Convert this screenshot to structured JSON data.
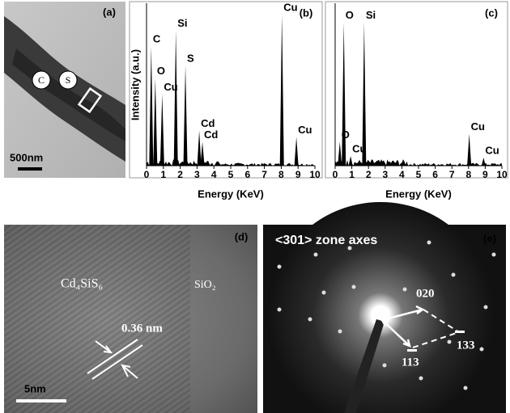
{
  "panels": {
    "a": {
      "tag": "(a)",
      "marker_1": "C",
      "marker_2": "S",
      "scale_bar": "500nm"
    },
    "d": {
      "tag": "(d)",
      "region_1": "Cd₄SiS₆",
      "region_2": "SiO₂",
      "spacing": "0.36 nm",
      "scale_bar": "5nm"
    },
    "e": {
      "tag": "(e)",
      "title": "<301> zone axes",
      "spot_1": "020",
      "spot_2": "133",
      "spot_3": "113"
    }
  },
  "chart_data": [
    {
      "type": "spectrum",
      "tag": "(b)",
      "xlabel": "Energy (KeV)",
      "ylabel": "Intensity (a.u.)",
      "xlim": [
        0,
        10
      ],
      "xticks": [
        0,
        1,
        2,
        3,
        4,
        5,
        6,
        7,
        8,
        9,
        10
      ],
      "ylim": [
        0,
        100
      ],
      "color": "#000000",
      "peaks": [
        {
          "label": "C",
          "energy": 0.28,
          "height": 75
        },
        {
          "label": "O",
          "energy": 0.52,
          "height": 55
        },
        {
          "label": "Cu",
          "energy": 0.93,
          "height": 45
        },
        {
          "label": "Si",
          "energy": 1.74,
          "height": 85
        },
        {
          "label": "S",
          "energy": 2.31,
          "height": 63
        },
        {
          "label": "Cd",
          "energy": 3.13,
          "height": 22
        },
        {
          "label": "Cd",
          "energy": 3.32,
          "height": 15
        },
        {
          "label": "Cu",
          "energy": 8.04,
          "height": 95
        },
        {
          "label": "Cu",
          "energy": 8.9,
          "height": 18
        }
      ]
    },
    {
      "type": "spectrum",
      "tag": "(c)",
      "xlabel": "Energy (KeV)",
      "xlim": [
        0,
        10
      ],
      "xticks": [
        0,
        1,
        2,
        3,
        4,
        5,
        6,
        7,
        8,
        9,
        10
      ],
      "ylim": [
        0,
        100
      ],
      "color": "#000000",
      "peaks": [
        {
          "label": "O",
          "energy": 0.28,
          "height": 15
        },
        {
          "label": "O",
          "energy": 0.52,
          "height": 90
        },
        {
          "label": "Cu",
          "energy": 0.93,
          "height": 6
        },
        {
          "label": "Si",
          "energy": 1.74,
          "height": 90
        },
        {
          "label": "Cu",
          "energy": 8.04,
          "height": 20
        },
        {
          "label": "Cu",
          "energy": 8.9,
          "height": 5
        }
      ]
    }
  ]
}
